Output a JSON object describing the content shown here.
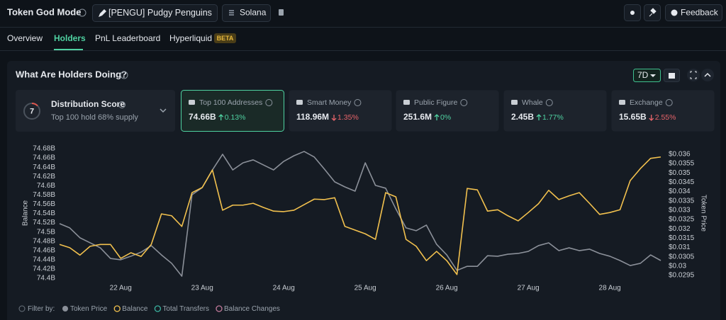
{
  "header": {
    "title": "Token God Mode",
    "token": "[PENGU] Pudgy Penguins",
    "chain": "Solana",
    "feedback": "Feedback"
  },
  "tabs": {
    "items": [
      "Overview",
      "Holders",
      "PnL Leaderboard",
      "Hyperliquid"
    ],
    "active": 1,
    "badge": "BETA"
  },
  "panel": {
    "title": "What Are Holders Doing?",
    "range": "7D"
  },
  "distribution": {
    "score": "7",
    "title": "Distribution Score",
    "subtitle": "Top 100 hold 68% supply"
  },
  "cards": [
    {
      "label": "Top 100 Addresses",
      "value": "74.66B",
      "change": "0.13%",
      "direction": "up",
      "selected": true
    },
    {
      "label": "Smart Money",
      "value": "118.96M",
      "change": "1.35%",
      "direction": "down"
    },
    {
      "label": "Public Figure",
      "value": "251.6M",
      "change": "0%",
      "direction": "up"
    },
    {
      "label": "Whale",
      "value": "2.45B",
      "change": "1.77%",
      "direction": "up"
    },
    {
      "label": "Exchange",
      "value": "15.65B",
      "change": "2.55%",
      "direction": "down"
    }
  ],
  "filter": {
    "label": "Filter by:",
    "extra_options": [
      "Total Transfers",
      "Balance Changes"
    ]
  },
  "chart_data": {
    "type": "line",
    "ylabel": "Balance",
    "y2label": "Token Price",
    "categories": [
      null,
      null,
      null,
      null,
      null,
      null,
      "22 Aug",
      null,
      null,
      null,
      null,
      null,
      null,
      null,
      "23 Aug",
      null,
      null,
      null,
      null,
      null,
      null,
      null,
      "24 Aug",
      null,
      null,
      null,
      null,
      null,
      null,
      null,
      "25 Aug",
      null,
      null,
      null,
      null,
      null,
      null,
      null,
      "26 Aug",
      null,
      null,
      null,
      null,
      null,
      null,
      null,
      "27 Aug",
      null,
      null,
      null,
      null,
      null,
      null,
      null,
      "28 Aug",
      null,
      null,
      null,
      null,
      null
    ],
    "ylim": [
      74.4,
      74.68
    ],
    "yticks": [
      {
        "value": 74.4,
        "label": "74.4B"
      },
      {
        "value": 74.42,
        "label": "74.42B"
      },
      {
        "value": 74.44,
        "label": "74.44B"
      },
      {
        "value": 74.46,
        "label": "74.46B"
      },
      {
        "value": 74.48,
        "label": "74.48B"
      },
      {
        "value": 74.5,
        "label": "74.5B"
      },
      {
        "value": 74.52,
        "label": "74.52B"
      },
      {
        "value": 74.54,
        "label": "74.54B"
      },
      {
        "value": 74.56,
        "label": "74.56B"
      },
      {
        "value": 74.58,
        "label": "74.58B"
      },
      {
        "value": 74.6,
        "label": "74.6B"
      },
      {
        "value": 74.62,
        "label": "74.62B"
      },
      {
        "value": 74.64,
        "label": "74.64B"
      },
      {
        "value": 74.66,
        "label": "74.66B"
      },
      {
        "value": 74.68,
        "label": "74.68B"
      }
    ],
    "y2lim": [
      0.02935,
      0.0363
    ],
    "y2ticks": [
      {
        "value": 0.0295,
        "label": "$0.0295"
      },
      {
        "value": 0.03,
        "label": "$0.03"
      },
      {
        "value": 0.0305,
        "label": "$0.0305"
      },
      {
        "value": 0.031,
        "label": "$0.031"
      },
      {
        "value": 0.0315,
        "label": "$0.0315"
      },
      {
        "value": 0.032,
        "label": "$0.032"
      },
      {
        "value": 0.0325,
        "label": "$0.0325"
      },
      {
        "value": 0.033,
        "label": "$0.033"
      },
      {
        "value": 0.0335,
        "label": "$0.0335"
      },
      {
        "value": 0.034,
        "label": "$0.034"
      },
      {
        "value": 0.0345,
        "label": "$0.0345"
      },
      {
        "value": 0.035,
        "label": "$0.035"
      },
      {
        "value": 0.0355,
        "label": "$0.0355"
      },
      {
        "value": 0.036,
        "label": "$0.036"
      }
    ],
    "grid": false,
    "series": [
      {
        "name": "Token Price",
        "color": "#8b9099",
        "axis": "y2",
        "values": [
          0.03228,
          0.03205,
          0.03152,
          0.03125,
          0.03098,
          0.03041,
          0.03034,
          0.03053,
          0.03075,
          0.0311,
          0.0306,
          0.03015,
          0.02946,
          0.03383,
          0.03421,
          0.03516,
          0.036,
          0.03516,
          0.03554,
          0.0357,
          0.03543,
          0.03516,
          0.03562,
          0.03592,
          0.03615,
          0.03585,
          0.0352,
          0.03452,
          0.03425,
          0.03402,
          0.03554,
          0.03433,
          0.03418,
          0.03307,
          0.03205,
          0.0319,
          0.0322,
          0.03117,
          0.0306,
          0.02977,
          0.02999,
          0.02999,
          0.03056,
          0.03053,
          0.03064,
          0.03068,
          0.03079,
          0.0311,
          0.03125,
          0.03083,
          0.03098,
          0.03083,
          0.03091,
          0.03068,
          0.03053,
          0.0303,
          0.03003,
          0.03015,
          0.0306,
          0.0303
        ]
      },
      {
        "name": "Balance",
        "color": "#f2c14e",
        "axis": "y",
        "values": [
          74.473,
          74.466,
          74.45,
          74.469,
          74.473,
          74.473,
          74.443,
          74.455,
          74.447,
          74.473,
          74.539,
          74.535,
          74.512,
          74.585,
          74.596,
          74.634,
          74.547,
          74.558,
          74.558,
          74.562,
          74.553,
          74.545,
          74.544,
          74.547,
          74.559,
          74.571,
          74.57,
          74.574,
          74.512,
          74.504,
          74.496,
          74.484,
          74.585,
          74.576,
          74.484,
          74.469,
          74.438,
          74.458,
          74.438,
          74.408,
          74.594,
          74.591,
          74.545,
          74.548,
          74.535,
          74.524,
          74.542,
          74.561,
          74.59,
          74.57,
          74.578,
          74.585,
          74.562,
          74.538,
          74.542,
          74.548,
          74.611,
          74.637,
          74.659,
          74.662
        ]
      }
    ]
  }
}
